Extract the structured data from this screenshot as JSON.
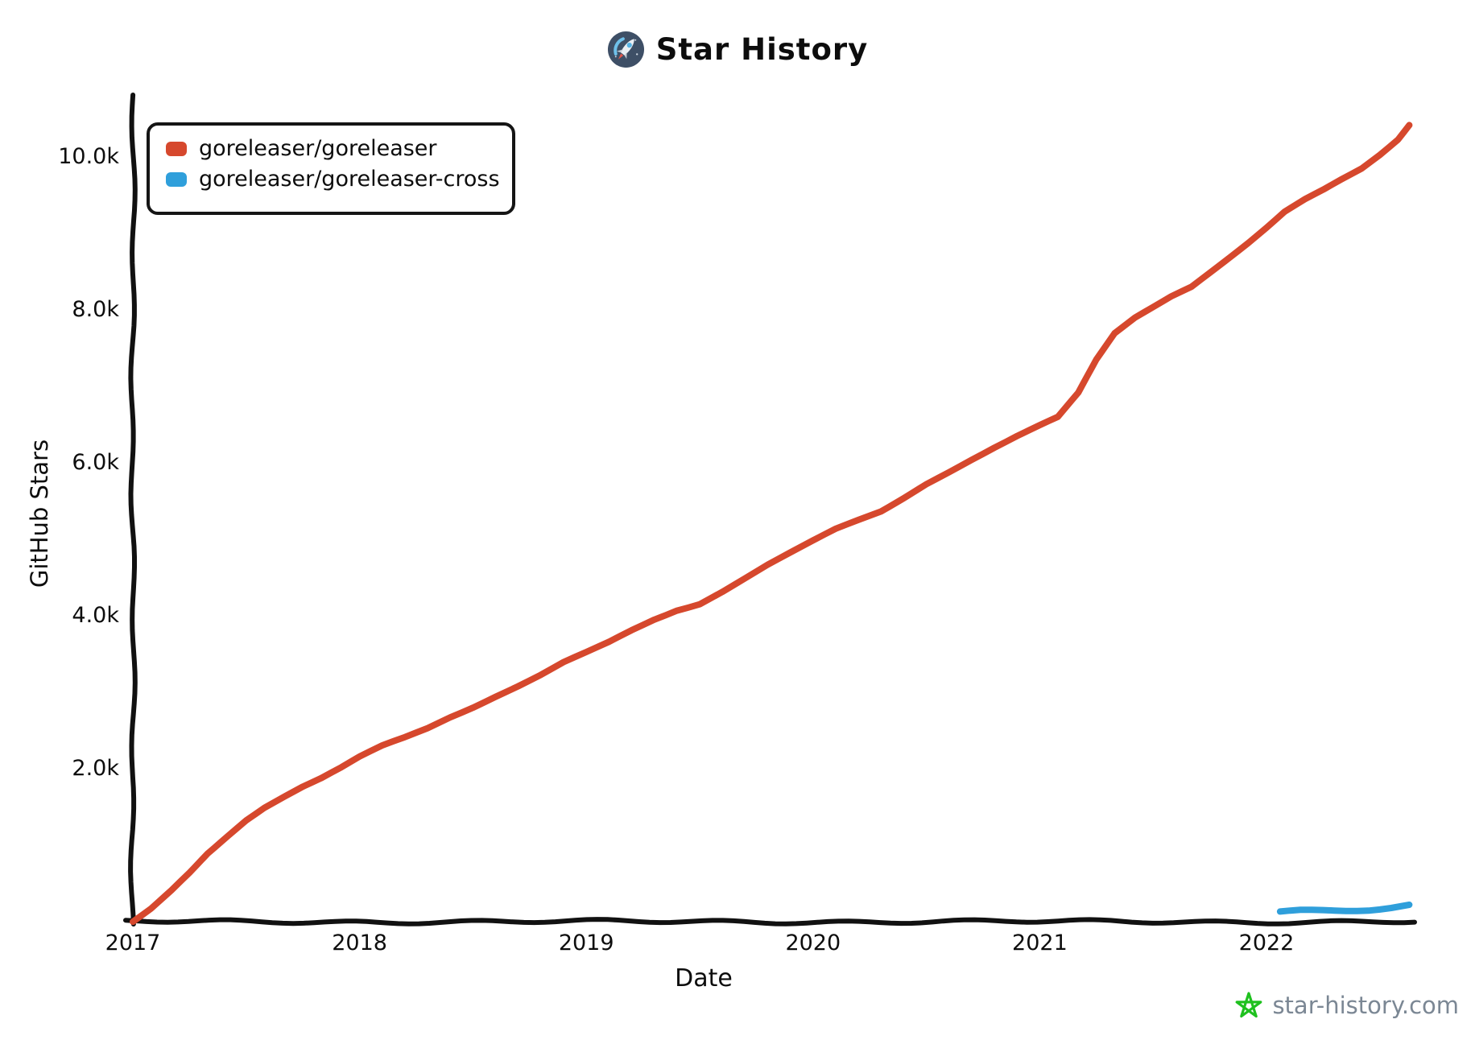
{
  "title": {
    "text": "Star History"
  },
  "legend": {
    "items": [
      {
        "label": "goreleaser/goreleaser",
        "color": "#d6482d"
      },
      {
        "label": "goreleaser/goreleaser-cross",
        "color": "#2f9fdb"
      }
    ]
  },
  "watermark": {
    "text": "star-history.com",
    "text_color": "#7b8794",
    "icon_color": "#1fc11f"
  },
  "chart_data": {
    "type": "line",
    "title": "Star History",
    "xlabel": "Date",
    "ylabel": "GitHub Stars",
    "grid": false,
    "legend_position": "top-left",
    "x_range": [
      2017.0,
      2022.75
    ],
    "y_range": [
      0,
      10800
    ],
    "x_ticks": [
      {
        "label": "2017",
        "value": 2017
      },
      {
        "label": "2018",
        "value": 2018
      },
      {
        "label": "2019",
        "value": 2019
      },
      {
        "label": "2020",
        "value": 2020
      },
      {
        "label": "2021",
        "value": 2021
      },
      {
        "label": "2022",
        "value": 2022
      }
    ],
    "y_ticks": [
      {
        "label": "2.0k",
        "value": 2000
      },
      {
        "label": "4.0k",
        "value": 4000
      },
      {
        "label": "6.0k",
        "value": 6000
      },
      {
        "label": "8.0k",
        "value": 8000
      },
      {
        "label": "10.0k",
        "value": 10000
      }
    ],
    "series": [
      {
        "name": "goreleaser/goreleaser",
        "color": "#d6482d",
        "points": [
          [
            2017.0,
            10
          ],
          [
            2017.08,
            180
          ],
          [
            2017.17,
            420
          ],
          [
            2017.25,
            650
          ],
          [
            2017.33,
            900
          ],
          [
            2017.42,
            1130
          ],
          [
            2017.5,
            1330
          ],
          [
            2017.58,
            1490
          ],
          [
            2017.67,
            1630
          ],
          [
            2017.75,
            1750
          ],
          [
            2017.83,
            1850
          ],
          [
            2017.92,
            1990
          ],
          [
            2018.0,
            2130
          ],
          [
            2018.1,
            2280
          ],
          [
            2018.2,
            2400
          ],
          [
            2018.3,
            2530
          ],
          [
            2018.4,
            2680
          ],
          [
            2018.5,
            2810
          ],
          [
            2018.6,
            2950
          ],
          [
            2018.7,
            3080
          ],
          [
            2018.8,
            3220
          ],
          [
            2018.9,
            3380
          ],
          [
            2019.0,
            3510
          ],
          [
            2019.1,
            3650
          ],
          [
            2019.2,
            3810
          ],
          [
            2019.3,
            3960
          ],
          [
            2019.4,
            4090
          ],
          [
            2019.5,
            4180
          ],
          [
            2019.6,
            4340
          ],
          [
            2019.7,
            4510
          ],
          [
            2019.8,
            4680
          ],
          [
            2019.9,
            4830
          ],
          [
            2020.0,
            4980
          ],
          [
            2020.1,
            5130
          ],
          [
            2020.2,
            5250
          ],
          [
            2020.3,
            5370
          ],
          [
            2020.4,
            5550
          ],
          [
            2020.5,
            5740
          ],
          [
            2020.6,
            5900
          ],
          [
            2020.7,
            6060
          ],
          [
            2020.8,
            6210
          ],
          [
            2020.9,
            6350
          ],
          [
            2021.0,
            6480
          ],
          [
            2021.08,
            6580
          ],
          [
            2021.17,
            6900
          ],
          [
            2021.25,
            7350
          ],
          [
            2021.33,
            7700
          ],
          [
            2021.42,
            7900
          ],
          [
            2021.5,
            8030
          ],
          [
            2021.58,
            8160
          ],
          [
            2021.67,
            8280
          ],
          [
            2021.75,
            8460
          ],
          [
            2021.83,
            8640
          ],
          [
            2021.92,
            8850
          ],
          [
            2022.0,
            9050
          ],
          [
            2022.08,
            9260
          ],
          [
            2022.17,
            9430
          ],
          [
            2022.25,
            9560
          ],
          [
            2022.33,
            9700
          ],
          [
            2022.42,
            9850
          ],
          [
            2022.5,
            10030
          ],
          [
            2022.58,
            10230
          ],
          [
            2022.63,
            10420
          ]
        ]
      },
      {
        "name": "goreleaser/goreleaser-cross",
        "color": "#2f9fdb",
        "points": [
          [
            2022.06,
            110
          ],
          [
            2022.15,
            125
          ],
          [
            2022.25,
            135
          ],
          [
            2022.35,
            145
          ],
          [
            2022.45,
            160
          ],
          [
            2022.55,
            185
          ],
          [
            2022.63,
            215
          ]
        ]
      }
    ]
  }
}
